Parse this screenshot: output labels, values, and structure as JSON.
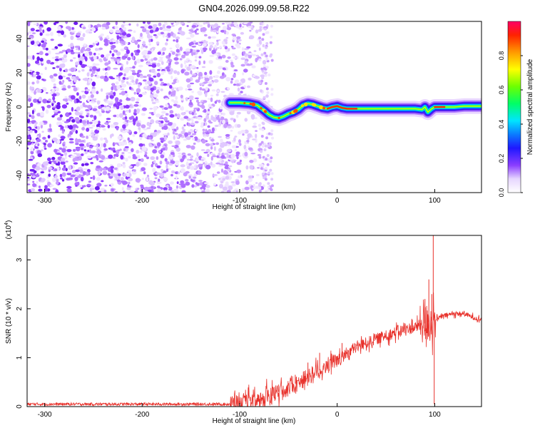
{
  "title": "GN04.2026.099.09.58.R22",
  "chart_data": [
    {
      "type": "heatmap",
      "panel": "spectrogram",
      "xlabel": "Height of straight line (km)",
      "ylabel": "Frequency (Hz)",
      "xlim": [
        -318,
        148
      ],
      "ylim": [
        -50,
        50
      ],
      "xticks": [
        -300,
        -200,
        -100,
        0,
        100
      ],
      "yticks": [
        -40,
        -20,
        0,
        20,
        40
      ],
      "noise_region": [
        -318,
        -68
      ],
      "ridge": [
        [
          -110,
          2.5
        ],
        [
          -100,
          2.5
        ],
        [
          -90,
          2
        ],
        [
          -82,
          1
        ],
        [
          -75,
          -2
        ],
        [
          -70,
          -4.5
        ],
        [
          -65,
          -6
        ],
        [
          -60,
          -6.5
        ],
        [
          -55,
          -5.5
        ],
        [
          -50,
          -4
        ],
        [
          -45,
          -3
        ],
        [
          -40,
          -1.5
        ],
        [
          -35,
          1
        ],
        [
          -30,
          2
        ],
        [
          -25,
          1.5
        ],
        [
          -20,
          0.5
        ],
        [
          -15,
          -0.5
        ],
        [
          -10,
          -1
        ],
        [
          -5,
          0
        ],
        [
          0,
          0.5
        ],
        [
          5,
          -0.5
        ],
        [
          10,
          -1
        ],
        [
          20,
          -1
        ],
        [
          40,
          -1
        ],
        [
          60,
          -1
        ],
        [
          80,
          -1
        ],
        [
          87,
          -1.5
        ],
        [
          90,
          0
        ],
        [
          93,
          -3
        ],
        [
          97,
          -1
        ],
        [
          100,
          0
        ],
        [
          110,
          0
        ],
        [
          120,
          0
        ],
        [
          130,
          0.5
        ],
        [
          148,
          0.5
        ]
      ],
      "colorbar": {
        "label": "Normalized spectral amplitude",
        "ticks": [
          0.0,
          0.2,
          0.4,
          0.6,
          0.8
        ],
        "range": [
          0,
          1
        ]
      }
    },
    {
      "type": "line",
      "panel": "snr",
      "xlabel": "Height of straight line (km)",
      "ylabel": "SNR (10 * v/v)",
      "yunit": "(x10",
      "yunit_exp": "4",
      "yunit_close": ")",
      "xlim": [
        -318,
        148
      ],
      "ylim": [
        0,
        3.5
      ],
      "xticks": [
        -300,
        -200,
        -100,
        0,
        100
      ],
      "yticks": [
        0,
        1,
        2,
        3
      ],
      "series_color": "#e8302a",
      "trend": {
        "x": [
          -318,
          -200,
          -110,
          -100,
          -90,
          -80,
          -70,
          -60,
          -50,
          -40,
          -30,
          -20,
          -10,
          0,
          10,
          20,
          30,
          40,
          50,
          60,
          70,
          80,
          85,
          90,
          95,
          100,
          105,
          110,
          120,
          130,
          140,
          148
        ],
        "y": [
          0.05,
          0.05,
          0.05,
          0.06,
          0.08,
          0.12,
          0.2,
          0.3,
          0.4,
          0.5,
          0.62,
          0.72,
          0.82,
          0.92,
          1.1,
          1.22,
          1.3,
          1.38,
          1.45,
          1.52,
          1.58,
          1.62,
          1.66,
          1.7,
          1.74,
          1.78,
          1.82,
          1.86,
          1.9,
          1.9,
          1.82,
          1.78
        ]
      },
      "spikes": [
        [
          -60,
          0.45
        ],
        [
          -43,
          0.65
        ],
        [
          -30,
          0.9
        ],
        [
          -18,
          1.1
        ],
        [
          5,
          1.3
        ],
        [
          90,
          2.2
        ],
        [
          94,
          2.6
        ],
        [
          97,
          2.3
        ],
        [
          98.5,
          3.5
        ],
        [
          99.5,
          0.05
        ]
      ]
    }
  ]
}
